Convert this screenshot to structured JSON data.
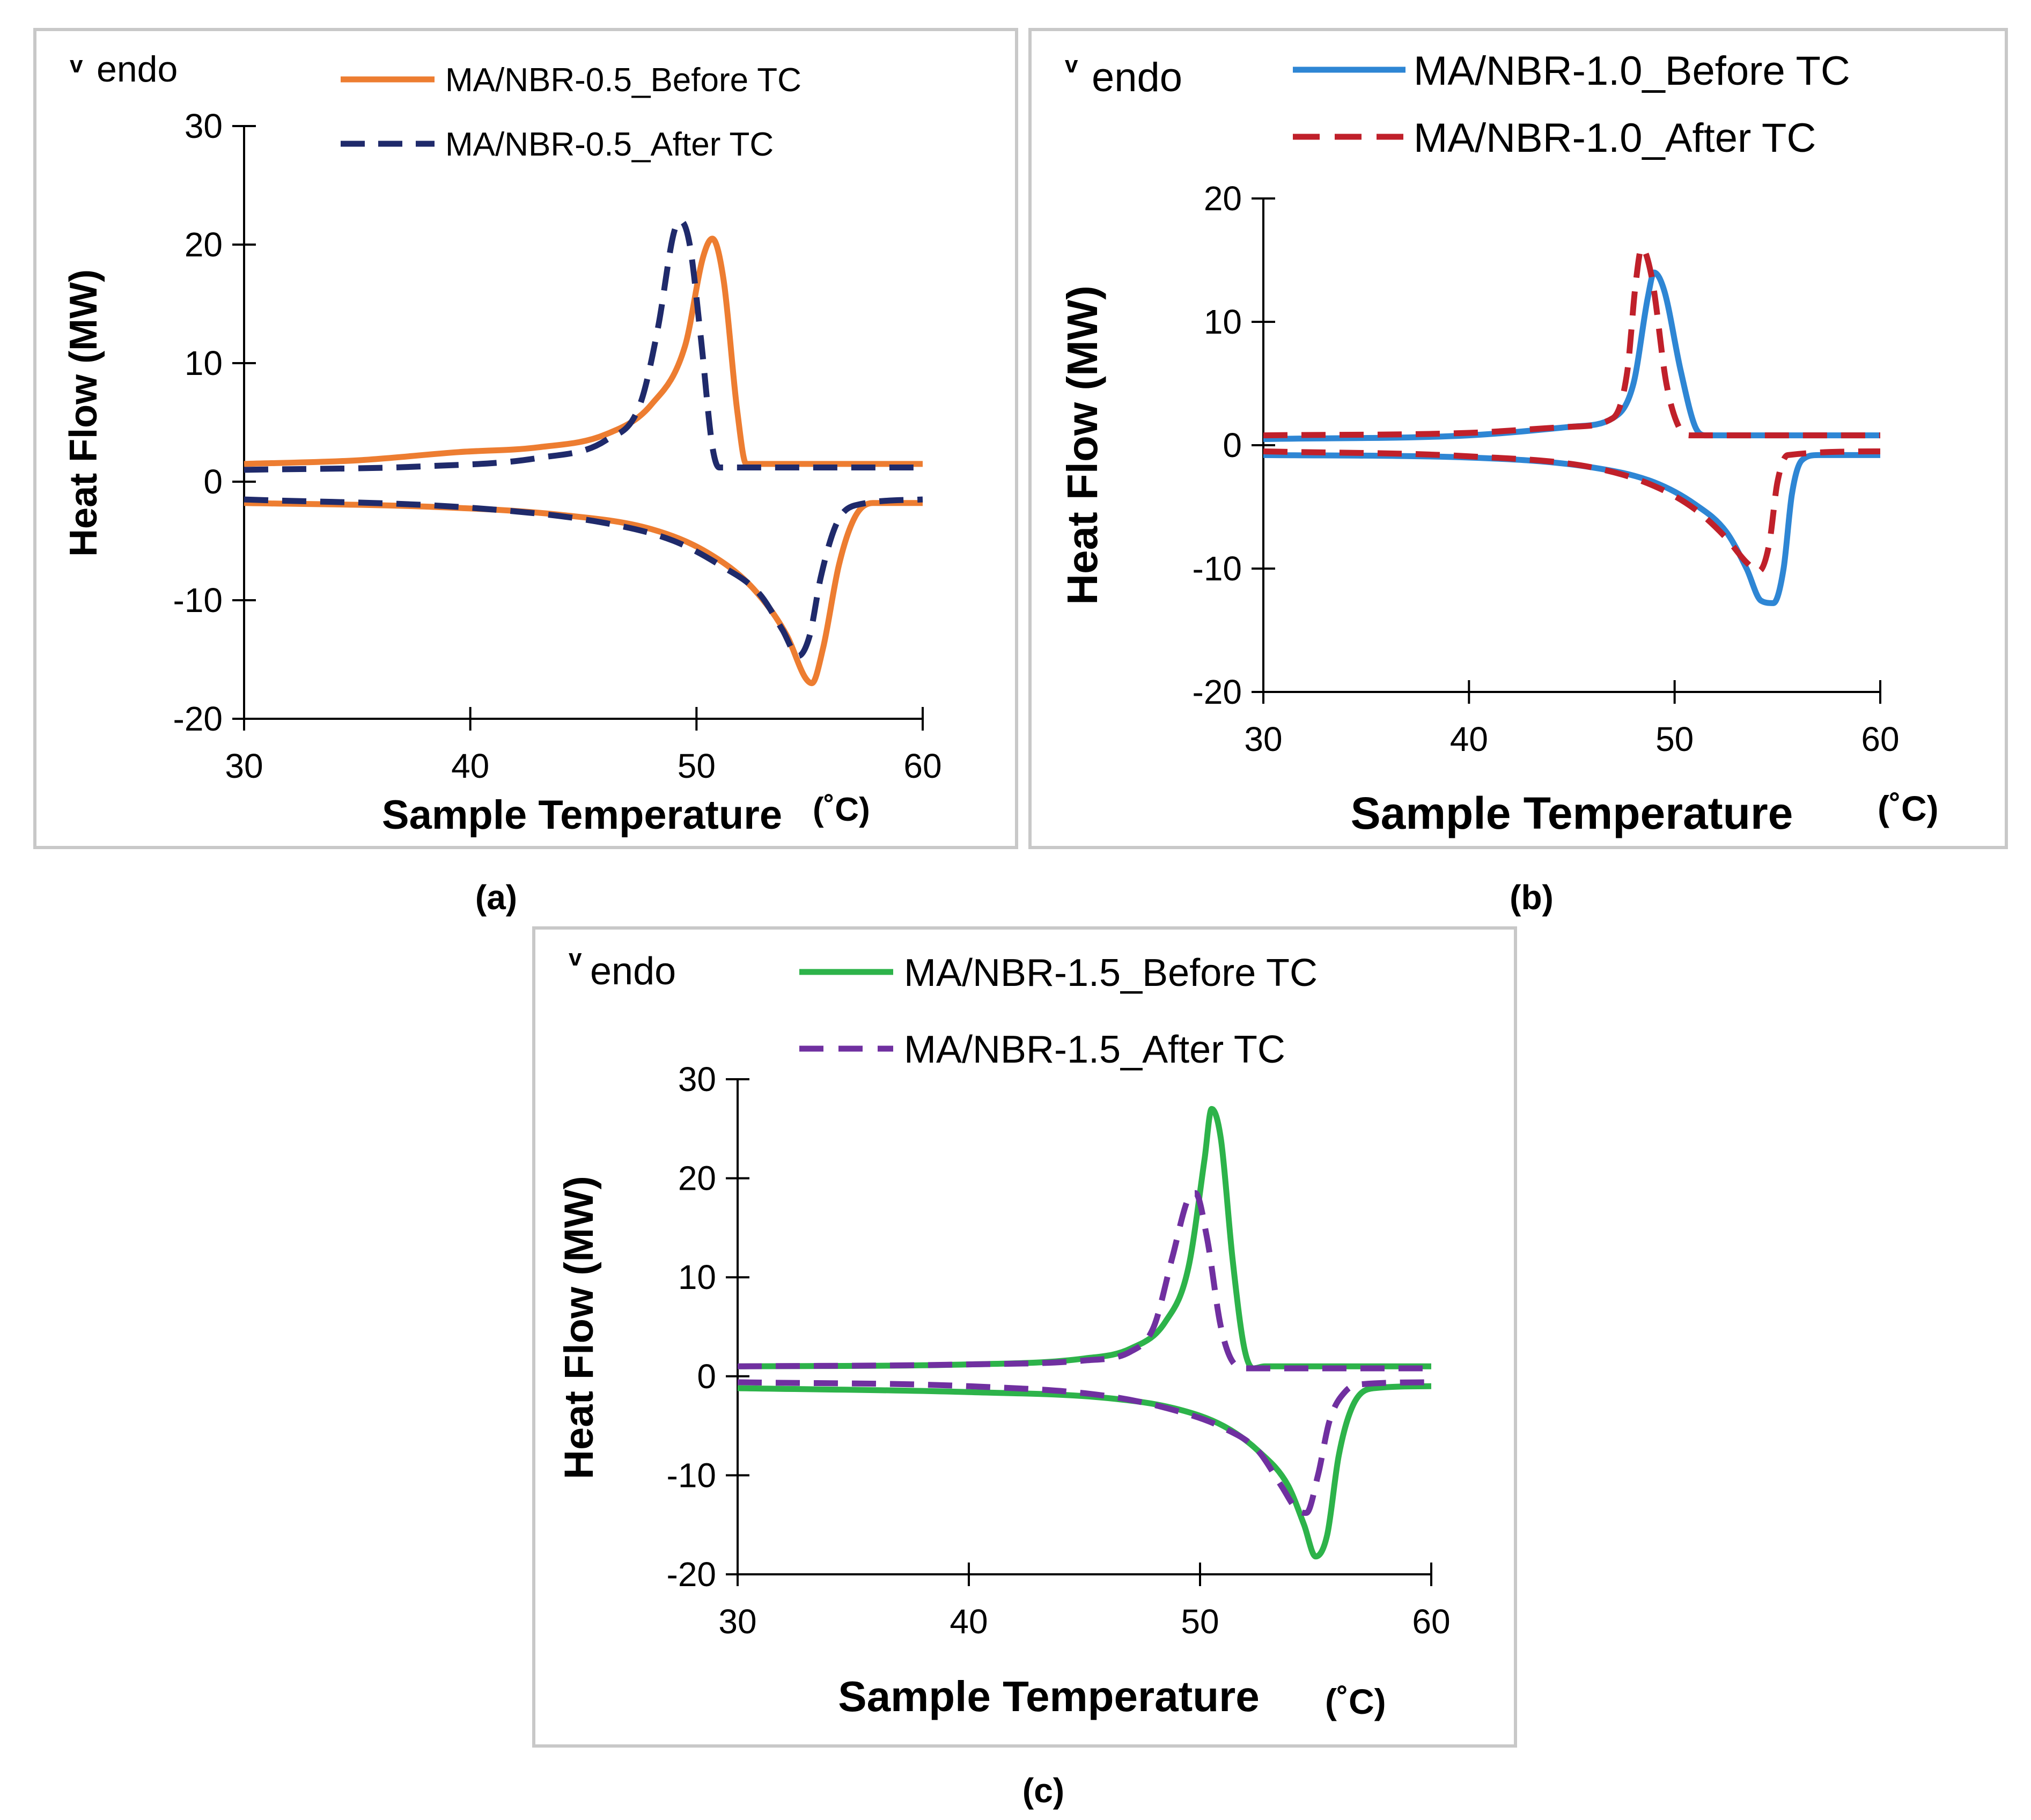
{
  "chart_data": [
    {
      "type": "line",
      "panel_label": "(a)",
      "endo_marker": "v",
      "endo_label": "endo",
      "xlabel": "Sample Temperature",
      "xunit": "(˚C)",
      "ylabel": "Heat Flow (MW)",
      "xlim": [
        30,
        60
      ],
      "ylim": [
        -20,
        30
      ],
      "xticks": [
        30,
        40,
        50,
        60
      ],
      "yticks": [
        -20,
        -10,
        0,
        10,
        20,
        30
      ],
      "grid": false,
      "legend_position": "top-right",
      "series": [
        {
          "name": "MA/NBR-0.5_Before TC",
          "color": "#ED7D31",
          "dash": "solid",
          "heating": [
            [
              30,
              1.5
            ],
            [
              35,
              1.8
            ],
            [
              39.5,
              2.5
            ],
            [
              43,
              2.9
            ],
            [
              46,
              4.0
            ],
            [
              48,
              6.5
            ],
            [
              49.5,
              11.5
            ],
            [
              50.3,
              19.0
            ],
            [
              50.7,
              20.5
            ],
            [
              51.2,
              17.0
            ],
            [
              51.8,
              6.0
            ],
            [
              52.2,
              1.5
            ],
            [
              60,
              1.5
            ]
          ],
          "cooling": [
            [
              30,
              -1.8
            ],
            [
              38,
              -2.1
            ],
            [
              44,
              -2.8
            ],
            [
              48,
              -4.0
            ],
            [
              50.5,
              -6.0
            ],
            [
              52.5,
              -9.0
            ],
            [
              54,
              -13.0
            ],
            [
              54.8,
              -16.5
            ],
            [
              55.1,
              -17.0
            ],
            [
              55.6,
              -14.0
            ],
            [
              56.3,
              -7.0
            ],
            [
              57,
              -3.0
            ],
            [
              57.8,
              -1.8
            ],
            [
              60,
              -1.8
            ]
          ]
        },
        {
          "name": "MA/NBR-0.5_After TC",
          "color": "#1F2A6B",
          "dash": "dashed",
          "heating": [
            [
              30,
              1.0
            ],
            [
              38,
              1.3
            ],
            [
              43,
              2.0
            ],
            [
              46,
              3.5
            ],
            [
              47.5,
              6.5
            ],
            [
              48.3,
              13.0
            ],
            [
              49.0,
              21.0
            ],
            [
              49.3,
              22.0
            ],
            [
              49.7,
              20.0
            ],
            [
              50.2,
              12.0
            ],
            [
              50.7,
              3.0
            ],
            [
              51.0,
              1.2
            ],
            [
              60,
              1.2
            ]
          ],
          "cooling": [
            [
              30,
              -1.5
            ],
            [
              40,
              -2.2
            ],
            [
              46,
              -3.5
            ],
            [
              49,
              -5.0
            ],
            [
              51,
              -7.0
            ],
            [
              52.8,
              -9.5
            ],
            [
              53.8,
              -12.5
            ],
            [
              54.5,
              -14.7
            ],
            [
              55.0,
              -13.0
            ],
            [
              55.5,
              -8.0
            ],
            [
              56.2,
              -3.5
            ],
            [
              57,
              -2.0
            ],
            [
              60,
              -1.5
            ]
          ]
        }
      ]
    },
    {
      "type": "line",
      "panel_label": "(b)",
      "endo_marker": "v",
      "endo_label": "endo",
      "xlabel": "Sample Temperature",
      "xunit": "(˚C)",
      "ylabel": "Heat Flow (MW)",
      "xlim": [
        30,
        60
      ],
      "ylim": [
        -20,
        20
      ],
      "xticks": [
        30,
        40,
        50,
        60
      ],
      "yticks": [
        -20,
        -10,
        0,
        10,
        20
      ],
      "grid": false,
      "legend_position": "top-right",
      "series": [
        {
          "name": "MA/NBR-1.0_Before TC",
          "color": "#2E86D4",
          "dash": "solid",
          "heating": [
            [
              30,
              0.5
            ],
            [
              40,
              0.8
            ],
            [
              45,
              1.5
            ],
            [
              47,
              2.2
            ],
            [
              48,
              5.0
            ],
            [
              48.7,
              12.0
            ],
            [
              49.0,
              14.0
            ],
            [
              49.5,
              12.5
            ],
            [
              50.3,
              6.0
            ],
            [
              51.0,
              1.5
            ],
            [
              51.5,
              0.8
            ],
            [
              60,
              0.8
            ]
          ],
          "cooling": [
            [
              30,
              -0.8
            ],
            [
              40,
              -1.0
            ],
            [
              46,
              -1.8
            ],
            [
              49,
              -3.0
            ],
            [
              51,
              -4.8
            ],
            [
              52.5,
              -7.0
            ],
            [
              53.5,
              -10.0
            ],
            [
              54.2,
              -12.6
            ],
            [
              54.8,
              -12.8
            ],
            [
              55.3,
              -10.0
            ],
            [
              55.7,
              -4.0
            ],
            [
              56.2,
              -1.2
            ],
            [
              57,
              -0.8
            ],
            [
              60,
              -0.8
            ]
          ]
        },
        {
          "name": "MA/NBR-1.0_After TC",
          "color": "#C0202A",
          "dash": "dashed",
          "heating": [
            [
              30,
              0.8
            ],
            [
              40,
              1.0
            ],
            [
              45,
              1.5
            ],
            [
              47,
              2.2
            ],
            [
              47.7,
              6.0
            ],
            [
              48.1,
              13.0
            ],
            [
              48.4,
              16.0
            ],
            [
              48.9,
              13.5
            ],
            [
              49.6,
              5.0
            ],
            [
              50.2,
              1.5
            ],
            [
              50.8,
              0.8
            ],
            [
              60,
              0.8
            ]
          ],
          "cooling": [
            [
              30,
              -0.5
            ],
            [
              40,
              -0.9
            ],
            [
              46,
              -1.8
            ],
            [
              49,
              -3.3
            ],
            [
              51,
              -5.2
            ],
            [
              52.5,
              -7.5
            ],
            [
              53.5,
              -9.5
            ],
            [
              54.1,
              -10.2
            ],
            [
              54.6,
              -8.0
            ],
            [
              55.0,
              -3.0
            ],
            [
              55.5,
              -0.8
            ],
            [
              60,
              -0.5
            ]
          ]
        }
      ]
    },
    {
      "type": "line",
      "panel_label": "(c)",
      "endo_marker": "v",
      "endo_label": "endo",
      "xlabel": "Sample Temperature",
      "xunit": "(˚C)",
      "ylabel": "Heat Flow (MW)",
      "xlim": [
        30,
        60
      ],
      "ylim": [
        -20,
        30
      ],
      "xticks": [
        30,
        40,
        50,
        60
      ],
      "yticks": [
        -20,
        -10,
        0,
        10,
        20,
        30
      ],
      "grid": false,
      "legend_position": "top-right",
      "series": [
        {
          "name": "MA/NBR-1.5_Before TC",
          "color": "#2DB34A",
          "dash": "solid",
          "heating": [
            [
              30,
              1.0
            ],
            [
              40,
              1.2
            ],
            [
              45,
              1.8
            ],
            [
              47,
              2.8
            ],
            [
              48.5,
              5.5
            ],
            [
              49.5,
              11.0
            ],
            [
              50.2,
              22.0
            ],
            [
              50.5,
              27.0
            ],
            [
              50.9,
              24.0
            ],
            [
              51.4,
              12.0
            ],
            [
              51.9,
              3.0
            ],
            [
              52.3,
              0.8
            ],
            [
              52.8,
              1.0
            ],
            [
              60,
              1.0
            ]
          ],
          "cooling": [
            [
              30,
              -1.2
            ],
            [
              40,
              -1.6
            ],
            [
              46,
              -2.2
            ],
            [
              49,
              -3.3
            ],
            [
              51,
              -5.0
            ],
            [
              52.5,
              -7.5
            ],
            [
              53.8,
              -11.0
            ],
            [
              54.5,
              -15.0
            ],
            [
              55.0,
              -18.2
            ],
            [
              55.5,
              -16.0
            ],
            [
              56.0,
              -8.0
            ],
            [
              56.6,
              -3.0
            ],
            [
              57.5,
              -1.2
            ],
            [
              60,
              -1.0
            ]
          ]
        },
        {
          "name": "MA/NBR-1.5_After TC",
          "color": "#7030A0",
          "dash": "dashed",
          "heating": [
            [
              30,
              1.0
            ],
            [
              40,
              1.2
            ],
            [
              45,
              1.6
            ],
            [
              47,
              2.5
            ],
            [
              48,
              5.0
            ],
            [
              48.8,
              12.0
            ],
            [
              49.5,
              18.0
            ],
            [
              49.8,
              18.5
            ],
            [
              50.3,
              14.0
            ],
            [
              50.9,
              5.0
            ],
            [
              51.5,
              1.2
            ],
            [
              52,
              0.8
            ],
            [
              60,
              0.8
            ]
          ],
          "cooling": [
            [
              30,
              -0.6
            ],
            [
              40,
              -1.0
            ],
            [
              46,
              -2.0
            ],
            [
              49,
              -3.5
            ],
            [
              51,
              -5.2
            ],
            [
              52.5,
              -7.5
            ],
            [
              53.5,
              -11.0
            ],
            [
              54.2,
              -13.5
            ],
            [
              54.6,
              -13.8
            ],
            [
              55.1,
              -10.0
            ],
            [
              55.6,
              -4.5
            ],
            [
              56.3,
              -1.5
            ],
            [
              57,
              -0.8
            ],
            [
              60,
              -0.6
            ]
          ]
        }
      ]
    }
  ]
}
